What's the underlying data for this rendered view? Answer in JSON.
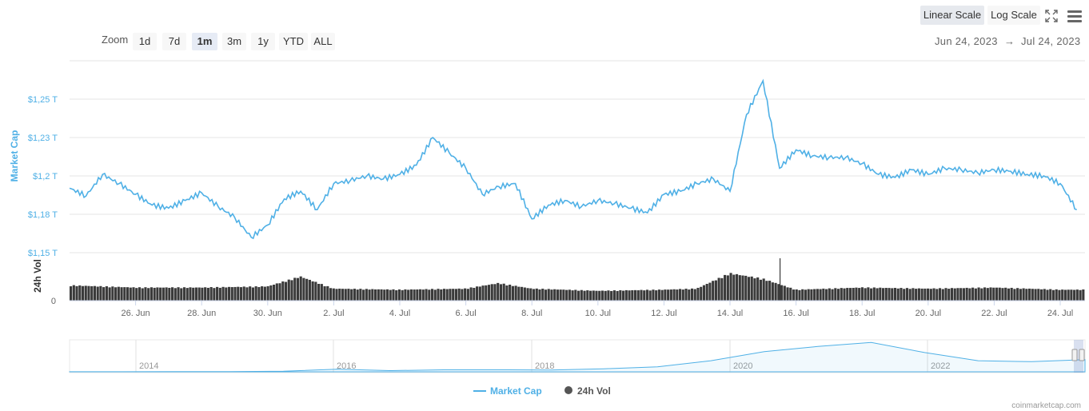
{
  "toolbar": {
    "linear_label": "Linear Scale",
    "log_label": "Log Scale",
    "zoom_label": "Zoom",
    "zoom_options": [
      "1d",
      "7d",
      "1m",
      "3m",
      "1y",
      "YTD",
      "ALL"
    ],
    "zoom_active": "1m",
    "range_from": "Jun 24, 2023",
    "range_arrow": "→",
    "range_to": "Jul 24, 2023"
  },
  "icons": {
    "fullscreen": "fullscreen-icon",
    "menu": "menu-icon"
  },
  "colors": {
    "line": "#4fb0e6",
    "volume": "#3a3a3a",
    "axis_label": "#4fb0e6",
    "grid": "#e6e6e6"
  },
  "chart_data": {
    "type": "line",
    "title": "",
    "ylabel": "Market Cap",
    "y_ticks": [
      {
        "value": 1.15,
        "label": "$1,15 T"
      },
      {
        "value": 1.175,
        "label": "$1,18 T"
      },
      {
        "value": 1.2,
        "label": "$1,2 T"
      },
      {
        "value": 1.225,
        "label": "$1,23 T"
      },
      {
        "value": 1.25,
        "label": "$1,25 T"
      }
    ],
    "ylim": [
      1.15,
      1.275
    ],
    "x_ticks": [
      "26. Jun",
      "28. Jun",
      "30. Jun",
      "2. Jul",
      "4. Jul",
      "6. Jul",
      "8. Jul",
      "10. Jul",
      "12. Jul",
      "14. Jul",
      "16. Jul",
      "18. Jul",
      "20. Jul",
      "22. Jul",
      "24. Jul"
    ],
    "series": [
      {
        "name": "Market Cap",
        "x": [
          "2023-06-24",
          "2023-06-24T12",
          "2023-06-25",
          "2023-06-25T12",
          "2023-06-26",
          "2023-06-26T12",
          "2023-06-27",
          "2023-06-27T12",
          "2023-06-28",
          "2023-06-28T12",
          "2023-06-29",
          "2023-06-29T12",
          "2023-06-30",
          "2023-06-30T12",
          "2023-07-01",
          "2023-07-01T12",
          "2023-07-02",
          "2023-07-02T12",
          "2023-07-03",
          "2023-07-03T12",
          "2023-07-04",
          "2023-07-04T12",
          "2023-07-05",
          "2023-07-05T12",
          "2023-07-06",
          "2023-07-06T12",
          "2023-07-07",
          "2023-07-07T12",
          "2023-07-08",
          "2023-07-08T12",
          "2023-07-09",
          "2023-07-09T12",
          "2023-07-10",
          "2023-07-10T12",
          "2023-07-11",
          "2023-07-11T12",
          "2023-07-12",
          "2023-07-12T12",
          "2023-07-13",
          "2023-07-13T12",
          "2023-07-14",
          "2023-07-14T12",
          "2023-07-15",
          "2023-07-15T12",
          "2023-07-16",
          "2023-07-16T12",
          "2023-07-17",
          "2023-07-17T12",
          "2023-07-18",
          "2023-07-18T12",
          "2023-07-19",
          "2023-07-19T12",
          "2023-07-20",
          "2023-07-20T12",
          "2023-07-21",
          "2023-07-21T12",
          "2023-07-22",
          "2023-07-22T12",
          "2023-07-23",
          "2023-07-23T12",
          "2023-07-24",
          "2023-07-24T12"
        ],
        "values": [
          1.192,
          1.187,
          1.201,
          1.195,
          1.188,
          1.181,
          1.179,
          1.184,
          1.189,
          1.18,
          1.173,
          1.16,
          1.168,
          1.185,
          1.19,
          1.178,
          1.195,
          1.197,
          1.2,
          1.198,
          1.201,
          1.207,
          1.225,
          1.215,
          1.205,
          1.188,
          1.193,
          1.195,
          1.172,
          1.181,
          1.184,
          1.18,
          1.184,
          1.182,
          1.179,
          1.176,
          1.188,
          1.19,
          1.195,
          1.198,
          1.19,
          1.24,
          1.262,
          1.205,
          1.217,
          1.213,
          1.212,
          1.212,
          1.208,
          1.201,
          1.199,
          1.204,
          1.201,
          1.205,
          1.204,
          1.202,
          1.204,
          1.203,
          1.201,
          1.2,
          1.195,
          1.178
        ]
      },
      {
        "name": "24h Vol",
        "y_tick": "0",
        "ylabel": "24h Vol",
        "x": [
          "2023-06-24",
          "2023-06-26",
          "2023-06-28",
          "2023-06-30",
          "2023-07-01",
          "2023-07-02",
          "2023-07-04",
          "2023-07-06",
          "2023-07-07",
          "2023-07-08",
          "2023-07-10",
          "2023-07-12",
          "2023-07-13",
          "2023-07-14",
          "2023-07-15",
          "2023-07-16",
          "2023-07-18",
          "2023-07-20",
          "2023-07-22",
          "2023-07-24"
        ],
        "values": [
          14,
          12,
          12,
          13,
          22,
          11,
          10,
          11,
          16,
          11,
          9,
          10,
          11,
          25,
          20,
          10,
          12,
          11,
          12,
          10
        ]
      }
    ],
    "navigator": {
      "years": [
        "2014",
        "2016",
        "2018",
        "2020",
        "2022"
      ],
      "values": [
        0.01,
        0.01,
        0.02,
        0.02,
        0.06,
        0.25,
        0.12,
        0.2,
        0.2,
        0.18,
        0.3,
        0.5,
        1.1,
        2.0,
        2.5,
        2.9,
        1.9,
        1.1,
        1.0,
        1.2
      ]
    },
    "legend": [
      "Market Cap",
      "24h Vol"
    ],
    "legend_position": "bottom-center"
  },
  "credit": "coinmarketcap.com"
}
